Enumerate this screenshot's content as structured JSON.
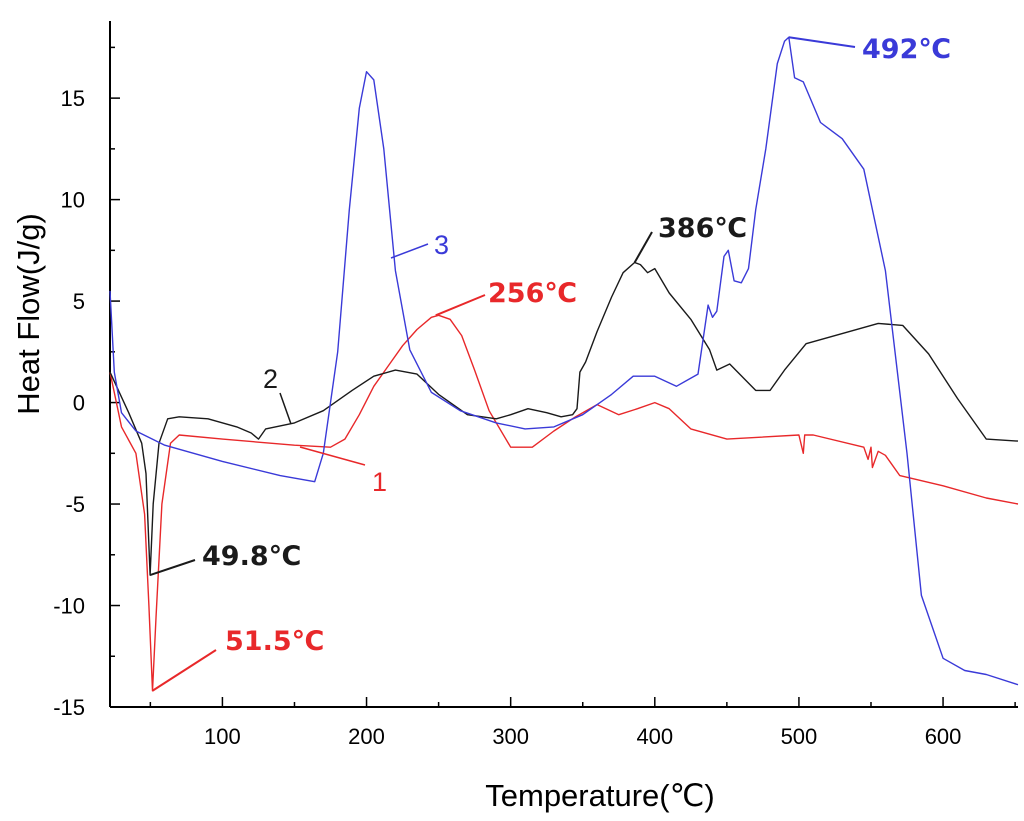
{
  "chart_data": {
    "type": "line",
    "title": "",
    "xlabel": "Temperature(℃)",
    "ylabel": "Heat Flow(J/g)",
    "xlim": [
      22,
      652
    ],
    "ylim": [
      -15,
      18.8
    ],
    "xticks": [
      100,
      200,
      300,
      400,
      500,
      600
    ],
    "xtick_labels": [
      "100",
      "200",
      "300",
      "400",
      "500",
      "600"
    ],
    "yticks": [
      -15,
      -10,
      -5,
      0,
      5,
      10,
      15
    ],
    "ytick_labels": [
      "-15",
      "-10",
      "-5",
      "0",
      "5",
      "10",
      "15"
    ],
    "grid": false,
    "series": [
      {
        "name": "1",
        "color": "#e8282a",
        "x": [
          22,
          30,
          40,
          46,
          49,
          51.5,
          54,
          58,
          64,
          70,
          100,
          150,
          175,
          185,
          195,
          205,
          215,
          225,
          235,
          245,
          250,
          258,
          266,
          275,
          285,
          300,
          315,
          330,
          345,
          360,
          375,
          388,
          400,
          410,
          425,
          450,
          500,
          503,
          504,
          510,
          545,
          548,
          550,
          551,
          555,
          560,
          570,
          600,
          630,
          652
        ],
        "y": [
          1.5,
          -1.2,
          -2.5,
          -5.5,
          -10,
          -14.2,
          -10.5,
          -5,
          -2,
          -1.6,
          -1.8,
          -2.1,
          -2.2,
          -1.8,
          -0.6,
          0.8,
          1.8,
          2.8,
          3.6,
          4.2,
          4.3,
          4.1,
          3.3,
          1.6,
          -0.4,
          -2.2,
          -2.2,
          -1.4,
          -0.7,
          -0.1,
          -0.6,
          -0.3,
          0.0,
          -0.3,
          -1.3,
          -1.8,
          -1.6,
          -2.5,
          -1.6,
          -1.6,
          -2.2,
          -2.8,
          -2.2,
          -3.2,
          -2.4,
          -2.6,
          -3.6,
          -4.1,
          -4.7,
          -5.0
        ]
      },
      {
        "name": "2",
        "color": "#1a1a1a",
        "x": [
          22,
          35,
          44,
          47,
          49.8,
          52,
          56,
          62,
          70,
          90,
          110,
          120,
          125,
          130,
          150,
          170,
          190,
          205,
          220,
          235,
          250,
          270,
          290,
          300,
          312,
          325,
          335,
          343,
          346,
          348,
          352,
          360,
          370,
          378,
          386,
          390,
          395,
          400,
          410,
          425,
          438,
          443,
          452,
          470,
          480,
          490,
          505,
          530,
          555,
          572,
          590,
          610,
          630,
          652
        ],
        "y": [
          1.5,
          -0.5,
          -2.0,
          -3.5,
          -8.5,
          -5,
          -2,
          -0.8,
          -0.7,
          -0.8,
          -1.2,
          -1.5,
          -1.8,
          -1.3,
          -1.0,
          -0.4,
          0.6,
          1.3,
          1.6,
          1.4,
          0.4,
          -0.6,
          -0.8,
          -0.6,
          -0.3,
          -0.5,
          -0.7,
          -0.6,
          -0.3,
          1.5,
          2.0,
          3.5,
          5.2,
          6.4,
          6.9,
          6.8,
          6.4,
          6.6,
          5.4,
          4.1,
          2.6,
          1.6,
          1.9,
          0.6,
          0.6,
          1.6,
          2.9,
          3.4,
          3.9,
          3.8,
          2.4,
          0.2,
          -1.8,
          -1.9
        ]
      },
      {
        "name": "3",
        "color": "#3a3ad8",
        "x": [
          22,
          25,
          30,
          40,
          60,
          100,
          140,
          164,
          170,
          180,
          188,
          195,
          200,
          205,
          212,
          220,
          230,
          245,
          265,
          290,
          310,
          330,
          350,
          370,
          385,
          400,
          415,
          430,
          437,
          440,
          443,
          448,
          451,
          455,
          460,
          465,
          470,
          477,
          485,
          490,
          493,
          497,
          503,
          515,
          530,
          545,
          560,
          575,
          585,
          600,
          615,
          630,
          652
        ],
        "y": [
          5.5,
          1.5,
          -0.5,
          -1.4,
          -2.1,
          -2.9,
          -3.6,
          -3.9,
          -2.5,
          2.5,
          9.5,
          14.5,
          16.3,
          15.9,
          12.5,
          6.5,
          2.6,
          0.5,
          -0.4,
          -1.0,
          -1.3,
          -1.2,
          -0.6,
          0.4,
          1.3,
          1.3,
          0.8,
          1.4,
          4.8,
          4.2,
          4.5,
          7.2,
          7.5,
          6.0,
          5.9,
          6.6,
          9.5,
          12.5,
          16.7,
          17.8,
          18.0,
          16.0,
          15.8,
          13.8,
          13.0,
          11.5,
          6.5,
          -2.5,
          -9.5,
          -12.6,
          -13.2,
          -13.4,
          -13.9
        ]
      }
    ],
    "annotations": [
      {
        "text": "51.5℃",
        "color": "#e8282a",
        "x": 51.5,
        "y": -14.2
      },
      {
        "text": "49.8℃",
        "color": "#1a1a1a",
        "x": 49.8,
        "y": -8.5
      },
      {
        "text": "256℃",
        "color": "#e8282a",
        "x": 248,
        "y": 4.3
      },
      {
        "text": "386℃",
        "color": "#1a1a1a",
        "x": 386,
        "y": 6.9
      },
      {
        "text": "492℃",
        "color": "#3a3ad8",
        "x": 493,
        "y": 18.0
      }
    ]
  }
}
